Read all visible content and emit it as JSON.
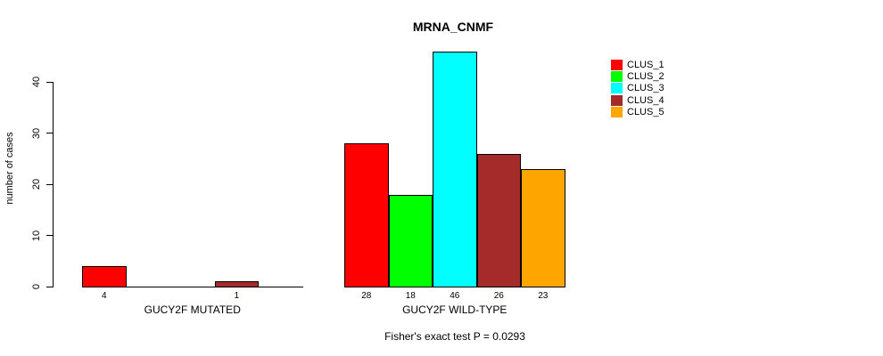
{
  "chart_data": {
    "type": "bar",
    "title": "MRNA_CNMF",
    "subtitle": "Fisher's exact test P = 0.0293",
    "ylabel": "number of cases",
    "xlabel": "",
    "yticks": [
      0,
      10,
      20,
      30,
      40
    ],
    "ylim": [
      0,
      46
    ],
    "grid": false,
    "legend_position": "top-right-outside",
    "series": [
      {
        "name": "CLUS_1",
        "color": "#FF0000"
      },
      {
        "name": "CLUS_2",
        "color": "#00FF00"
      },
      {
        "name": "CLUS_3",
        "color": "#00FFFF"
      },
      {
        "name": "CLUS_4",
        "color": "#A52A2A"
      },
      {
        "name": "CLUS_5",
        "color": "#FFA500"
      }
    ],
    "groups": [
      {
        "label": "GUCY2F MUTATED",
        "values": [
          4,
          0,
          0,
          1,
          0
        ]
      },
      {
        "label": "GUCY2F WILD-TYPE",
        "values": [
          28,
          18,
          46,
          26,
          23
        ]
      }
    ],
    "bar_value_labels_shown": true,
    "axis_color": "#000000",
    "background_color": "#FFFFFF"
  }
}
